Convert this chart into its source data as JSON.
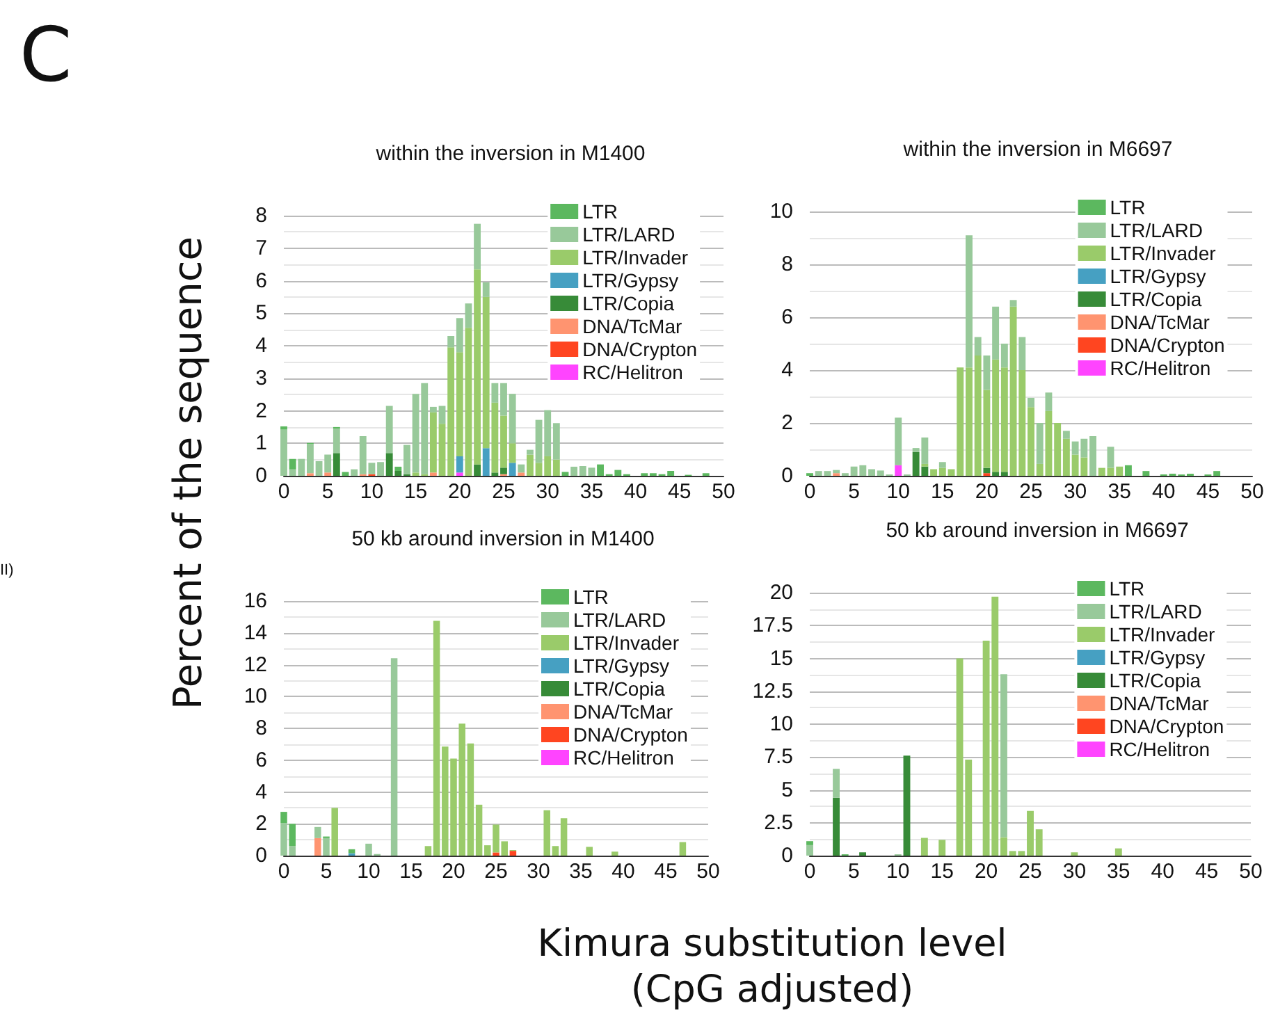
{
  "chart_data": [
    {
      "type": "bar",
      "title": "within the inversion in M1400",
      "xlabel": "Kimura substitution level\n(CpG adjusted)",
      "ylabel": "Percent of the sequence",
      "annotations": [
        "C",
        "II)"
      ],
      "stacked": true,
      "legend": "top right",
      "grid": "y",
      "xlim": [
        0,
        50
      ],
      "xticks": [
        0,
        5,
        10,
        15,
        20,
        25,
        30,
        35,
        40,
        45,
        50
      ],
      "ylim": [
        0,
        8
      ],
      "yticks": [
        0,
        1,
        2,
        3,
        4,
        5,
        6,
        7,
        8
      ],
      "x": [
        0,
        1,
        2,
        3,
        4,
        5,
        6,
        7,
        8,
        9,
        10,
        11,
        12,
        13,
        14,
        15,
        16,
        17,
        18,
        19,
        20,
        21,
        22,
        23,
        24,
        25,
        26,
        27,
        28,
        29,
        30,
        31,
        32,
        33,
        34,
        35,
        36,
        37,
        38,
        39,
        40,
        41,
        42,
        43,
        44,
        45,
        46,
        47,
        48,
        49
      ],
      "series": [
        {
          "name": "RC/Helitron",
          "color": "#ff44ff",
          "values": [
            0,
            0,
            0,
            0,
            0,
            0,
            0,
            0,
            0,
            0,
            0,
            0,
            0,
            0,
            0,
            0,
            0,
            0,
            0,
            0,
            0.1,
            0,
            0,
            0,
            0,
            0,
            0,
            0,
            0,
            0,
            0,
            0,
            0,
            0,
            0,
            0,
            0,
            0,
            0,
            0,
            0,
            0,
            0,
            0,
            0,
            0,
            0,
            0,
            0,
            0
          ]
        },
        {
          "name": "DNA/Crypton",
          "color": "#ff4520",
          "values": [
            0,
            0,
            0,
            0,
            0,
            0,
            0,
            0,
            0,
            0,
            0.05,
            0,
            0,
            0,
            0,
            0,
            0,
            0,
            0,
            0,
            0,
            0,
            0,
            0,
            0,
            0,
            0,
            0,
            0,
            0,
            0,
            0,
            0,
            0,
            0,
            0,
            0,
            0,
            0,
            0,
            0,
            0,
            0,
            0,
            0,
            0,
            0,
            0,
            0,
            0
          ]
        },
        {
          "name": "DNA/TcMar",
          "color": "#ff9470",
          "values": [
            0,
            0,
            0,
            0.08,
            0,
            0.1,
            0,
            0,
            0,
            0.05,
            0,
            0,
            0,
            0,
            0,
            0,
            0,
            0.1,
            0,
            0,
            0,
            0,
            0,
            0,
            0,
            0.05,
            0,
            0.1,
            0,
            0,
            0,
            0,
            0,
            0,
            0,
            0,
            0,
            0,
            0,
            0,
            0,
            0,
            0,
            0,
            0,
            0,
            0,
            0,
            0,
            0
          ]
        },
        {
          "name": "LTR/Copia",
          "color": "#378b38",
          "values": [
            0,
            0,
            0,
            0,
            0,
            0,
            0.7,
            0,
            0,
            0,
            0,
            0,
            0.7,
            0.15,
            0.05,
            0,
            0,
            0,
            0,
            0,
            0,
            0,
            0.35,
            0,
            0.1,
            0.2,
            0,
            0,
            0,
            0,
            0,
            0,
            0,
            0,
            0,
            0,
            0,
            0,
            0,
            0,
            0,
            0,
            0,
            0,
            0,
            0,
            0,
            0,
            0,
            0
          ]
        },
        {
          "name": "LTR/Gypsy",
          "color": "#46a0c2",
          "values": [
            0,
            0,
            0,
            0,
            0,
            0,
            0,
            0,
            0,
            0,
            0,
            0,
            0,
            0,
            0,
            0,
            0,
            0,
            0,
            0,
            0.5,
            0,
            0,
            0.85,
            0,
            0,
            0.4,
            0,
            0,
            0,
            0,
            0,
            0,
            0,
            0,
            0,
            0,
            0,
            0,
            0,
            0,
            0,
            0,
            0,
            0,
            0,
            0,
            0,
            0,
            0
          ]
        },
        {
          "name": "LTR/Invader",
          "color": "#9acb6a",
          "values": [
            0,
            0,
            0,
            0,
            0,
            0,
            0,
            0,
            0,
            0,
            0,
            0,
            0,
            0,
            0,
            0.1,
            0.05,
            1.85,
            1.6,
            3.95,
            3.2,
            4.55,
            6.0,
            4.65,
            2.15,
            1.6,
            0.6,
            0,
            0.65,
            0.4,
            0.6,
            0.5,
            0,
            0,
            0,
            0,
            0,
            0,
            0,
            0,
            0,
            0,
            0,
            0,
            0,
            0,
            0,
            0,
            0,
            0
          ]
        },
        {
          "name": "LTR/LARD",
          "color": "#98c99a",
          "values": [
            1.42,
            0.2,
            0.52,
            0.9,
            0.45,
            0.55,
            0.75,
            0,
            0.2,
            1.17,
            0.35,
            0.42,
            1.45,
            0,
            0.9,
            2.42,
            2.8,
            0.17,
            0.55,
            0.35,
            1.05,
            0.75,
            1.4,
            0.45,
            0.6,
            1.0,
            1.52,
            0.25,
            0.15,
            1.32,
            1.42,
            1.12,
            0,
            0.28,
            0.3,
            0.25,
            0,
            0,
            0,
            0,
            0,
            0,
            0,
            0,
            0,
            0,
            0,
            0,
            0,
            0
          ]
        },
        {
          "name": "LTR",
          "color": "#5cb85f",
          "values": [
            0.1,
            0.32,
            0,
            0.03,
            0,
            0,
            0.05,
            0.12,
            0,
            0,
            0,
            0,
            0,
            0.13,
            0,
            0,
            0,
            0,
            0,
            0,
            0,
            0,
            0,
            0,
            0,
            0,
            0,
            0,
            0,
            0,
            0,
            0,
            0.12,
            0,
            0,
            0,
            0.35,
            0.05,
            0.18,
            0.05,
            0,
            0.08,
            0.08,
            0.05,
            0.15,
            0,
            0.03,
            0,
            0.08,
            0
          ]
        }
      ]
    },
    {
      "type": "bar",
      "title": "within the inversion in M6697",
      "stacked": true,
      "legend": "top right",
      "grid": "y",
      "xlim": [
        0,
        50
      ],
      "xticks": [
        0,
        5,
        10,
        15,
        20,
        25,
        30,
        35,
        40,
        45,
        50
      ],
      "ylim": [
        0,
        10
      ],
      "yticks": [
        0,
        2,
        4,
        6,
        8,
        10
      ],
      "x": [
        0,
        1,
        2,
        3,
        4,
        5,
        6,
        7,
        8,
        9,
        10,
        11,
        12,
        13,
        14,
        15,
        16,
        17,
        18,
        19,
        20,
        21,
        22,
        23,
        24,
        25,
        26,
        27,
        28,
        29,
        30,
        31,
        32,
        33,
        34,
        35,
        36,
        37,
        38,
        39,
        40,
        41,
        42,
        43,
        44,
        45,
        46,
        47,
        48,
        49
      ],
      "series": [
        {
          "name": "RC/Helitron",
          "color": "#ff44ff",
          "values": [
            0,
            0,
            0,
            0,
            0,
            0,
            0,
            0,
            0,
            0,
            0.4,
            0,
            0,
            0,
            0,
            0,
            0,
            0,
            0,
            0,
            0,
            0,
            0,
            0,
            0,
            0,
            0,
            0,
            0,
            0,
            0,
            0,
            0,
            0,
            0,
            0,
            0,
            0,
            0,
            0,
            0,
            0,
            0,
            0,
            0,
            0,
            0,
            0,
            0,
            0
          ]
        },
        {
          "name": "DNA/Crypton",
          "color": "#ff4520",
          "values": [
            0,
            0,
            0,
            0,
            0,
            0,
            0,
            0,
            0,
            0,
            0,
            0,
            0,
            0,
            0,
            0,
            0,
            0,
            0,
            0,
            0.1,
            0,
            0,
            0,
            0,
            0,
            0,
            0,
            0,
            0,
            0,
            0,
            0,
            0,
            0,
            0,
            0,
            0,
            0,
            0,
            0,
            0,
            0,
            0,
            0,
            0,
            0,
            0,
            0,
            0
          ]
        },
        {
          "name": "DNA/TcMar",
          "color": "#ff9470",
          "values": [
            0,
            0,
            0,
            0.1,
            0,
            0,
            0,
            0,
            0,
            0,
            0,
            0,
            0,
            0,
            0,
            0,
            0,
            0,
            0,
            0,
            0,
            0,
            0,
            0,
            0,
            0,
            0,
            0,
            0,
            0,
            0,
            0,
            0,
            0,
            0,
            0,
            0,
            0,
            0,
            0,
            0,
            0,
            0,
            0,
            0,
            0,
            0,
            0,
            0,
            0
          ]
        },
        {
          "name": "LTR/Copia",
          "color": "#378b38",
          "values": [
            0,
            0,
            0,
            0,
            0,
            0,
            0,
            0,
            0,
            0,
            0,
            0,
            0.9,
            0.35,
            0,
            0,
            0,
            0,
            0,
            0,
            0.2,
            0.15,
            0.15,
            0,
            0,
            0,
            0,
            0,
            0,
            0,
            0,
            0,
            0,
            0,
            0,
            0,
            0,
            0,
            0,
            0,
            0,
            0,
            0,
            0,
            0,
            0,
            0,
            0,
            0,
            0
          ]
        },
        {
          "name": "LTR/Gypsy",
          "color": "#46a0c2",
          "values": [
            0,
            0,
            0,
            0,
            0,
            0,
            0,
            0,
            0,
            0,
            0,
            0,
            0,
            0,
            0,
            0,
            0,
            0,
            0,
            0,
            0,
            0,
            0,
            0,
            0,
            0,
            0,
            0,
            0,
            0,
            0,
            0,
            0,
            0,
            0,
            0,
            0,
            0,
            0,
            0,
            0,
            0,
            0,
            0,
            0,
            0,
            0,
            0,
            0,
            0
          ]
        },
        {
          "name": "LTR/Invader",
          "color": "#9acb6a",
          "values": [
            0,
            0,
            0,
            0,
            0,
            0,
            0,
            0,
            0,
            0,
            0,
            0,
            0,
            0.1,
            0.25,
            0.3,
            0.25,
            4.1,
            4.1,
            4.55,
            2.95,
            4.25,
            3.95,
            6.4,
            4.0,
            2.6,
            0.45,
            2.45,
            2.0,
            1.4,
            0.8,
            0.7,
            0,
            0.3,
            0.3,
            0.35,
            0,
            0,
            0,
            0,
            0,
            0,
            0,
            0,
            0,
            0,
            0,
            0,
            0,
            0
          ]
        },
        {
          "name": "LTR/LARD",
          "color": "#98c99a",
          "values": [
            0,
            0.18,
            0.18,
            0.12,
            0.1,
            0.35,
            0.4,
            0.25,
            0.2,
            0.05,
            1.8,
            0.05,
            0.15,
            1.0,
            0,
            0.22,
            0,
            0,
            5.0,
            0.7,
            1.3,
            2.0,
            0.9,
            0.25,
            1.25,
            0.35,
            1.55,
            0.7,
            0,
            0.3,
            0.5,
            0.7,
            1.5,
            0,
            0.8,
            0,
            0,
            0,
            0,
            0,
            0,
            0,
            0,
            0,
            0,
            0,
            0,
            0,
            0,
            0
          ]
        },
        {
          "name": "LTR",
          "color": "#5cb85f",
          "values": [
            0.1,
            0,
            0,
            0,
            0,
            0,
            0,
            0,
            0,
            0,
            0,
            0,
            0,
            0,
            0,
            0,
            0,
            0,
            0,
            0,
            0,
            0,
            0,
            0,
            0,
            0,
            0,
            0,
            0,
            0,
            0,
            0,
            0,
            0,
            0,
            0,
            0.4,
            0,
            0.18,
            0,
            0.05,
            0.08,
            0.05,
            0.08,
            0,
            0.05,
            0.18,
            0,
            0,
            0
          ]
        }
      ]
    },
    {
      "type": "bar",
      "title": "50 kb around inversion in M1400",
      "stacked": true,
      "legend": "top right",
      "grid": "y",
      "xlim": [
        0,
        50
      ],
      "xticks": [
        0,
        5,
        10,
        15,
        20,
        25,
        30,
        35,
        40,
        45,
        50
      ],
      "ylim": [
        0,
        16
      ],
      "yticks": [
        0,
        2,
        4,
        6,
        8,
        10,
        12,
        14,
        16
      ],
      "x": [
        0,
        1,
        2,
        3,
        4,
        5,
        6,
        7,
        8,
        9,
        10,
        11,
        12,
        13,
        14,
        15,
        16,
        17,
        18,
        19,
        20,
        21,
        22,
        23,
        24,
        25,
        26,
        27,
        28,
        29,
        30,
        31,
        32,
        33,
        34,
        35,
        36,
        37,
        38,
        39,
        40,
        41,
        42,
        43,
        44,
        45,
        46,
        47,
        48,
        49
      ],
      "series": [
        {
          "name": "RC/Helitron",
          "color": "#ff44ff",
          "values": [
            0,
            0,
            0,
            0,
            0,
            0,
            0,
            0,
            0,
            0,
            0,
            0,
            0,
            0,
            0,
            0,
            0,
            0,
            0,
            0,
            0,
            0,
            0,
            0,
            0,
            0,
            0,
            0,
            0,
            0,
            0,
            0,
            0,
            0,
            0,
            0,
            0,
            0,
            0,
            0,
            0,
            0,
            0,
            0,
            0,
            0,
            0,
            0,
            0,
            0
          ]
        },
        {
          "name": "DNA/Crypton",
          "color": "#ff4520",
          "values": [
            0,
            0,
            0,
            0,
            0,
            0,
            0,
            0,
            0,
            0,
            0,
            0,
            0,
            0,
            0,
            0,
            0,
            0,
            0,
            0,
            0,
            0,
            0,
            0,
            0,
            0.2,
            0,
            0.3,
            0,
            0,
            0,
            0,
            0,
            0,
            0,
            0,
            0,
            0,
            0,
            0,
            0,
            0,
            0,
            0,
            0,
            0,
            0,
            0,
            0,
            0
          ]
        },
        {
          "name": "DNA/TcMar",
          "color": "#ff9470",
          "values": [
            0,
            0,
            0,
            0,
            1.1,
            0,
            0,
            0,
            0,
            0,
            0,
            0,
            0,
            0,
            0,
            0,
            0,
            0,
            0,
            0,
            0,
            0,
            0,
            0,
            0,
            0,
            0,
            0,
            0,
            0,
            0,
            0,
            0,
            0,
            0,
            0,
            0,
            0,
            0,
            0,
            0,
            0,
            0,
            0,
            0,
            0,
            0,
            0,
            0,
            0
          ]
        },
        {
          "name": "LTR/Copia",
          "color": "#378b38",
          "values": [
            0,
            0,
            0,
            0,
            0,
            0,
            0,
            0,
            0,
            0,
            0,
            0,
            0,
            0,
            0,
            0,
            0,
            0,
            0,
            0,
            0,
            0,
            0,
            0,
            0,
            0,
            0,
            0,
            0,
            0,
            0,
            0,
            0,
            0,
            0,
            0,
            0,
            0,
            0,
            0,
            0,
            0,
            0,
            0,
            0,
            0,
            0,
            0,
            0,
            0
          ]
        },
        {
          "name": "LTR/Gypsy",
          "color": "#46a0c2",
          "values": [
            0,
            0,
            0,
            0,
            0,
            0,
            0,
            0,
            0.15,
            0,
            0,
            0,
            0,
            0,
            0,
            0,
            0,
            0,
            0,
            0,
            0,
            0,
            0,
            0,
            0,
            0,
            0,
            0,
            0,
            0,
            0,
            0,
            0,
            0,
            0,
            0,
            0,
            0,
            0,
            0,
            0,
            0,
            0,
            0,
            0,
            0,
            0,
            0,
            0,
            0
          ]
        },
        {
          "name": "LTR/Invader",
          "color": "#9acb6a",
          "values": [
            0,
            0,
            0,
            0,
            0,
            0,
            3.0,
            0,
            0,
            0,
            0,
            0,
            0,
            0,
            0,
            0,
            0,
            0.6,
            14.75,
            6.85,
            6.1,
            8.3,
            7.05,
            3.2,
            0.65,
            1.75,
            0.9,
            0.05,
            0,
            0,
            0,
            2.85,
            0.6,
            2.35,
            0,
            0,
            0.55,
            0,
            0,
            0.25,
            0,
            0,
            0,
            0,
            0,
            0,
            0,
            0.85,
            0,
            0
          ]
        },
        {
          "name": "LTR/LARD",
          "color": "#98c99a",
          "values": [
            2.05,
            0.6,
            0,
            0,
            0.7,
            1.1,
            0,
            0,
            0,
            0,
            0.75,
            0.1,
            0,
            12.4,
            0,
            0,
            0,
            0,
            0,
            0,
            0,
            0,
            0,
            0,
            0,
            0,
            0,
            0,
            0,
            0,
            0,
            0,
            0,
            0,
            0,
            0,
            0,
            0,
            0,
            0,
            0,
            0,
            0,
            0,
            0,
            0,
            0,
            0,
            0,
            0
          ]
        },
        {
          "name": "LTR",
          "color": "#5cb85f",
          "values": [
            0.7,
            1.4,
            0,
            0,
            0,
            0.1,
            0,
            0,
            0.25,
            0,
            0,
            0,
            0,
            0,
            0,
            0,
            0,
            0,
            0,
            0,
            0,
            0,
            0,
            0,
            0,
            0,
            0,
            0,
            0,
            0,
            0,
            0,
            0,
            0,
            0,
            0,
            0,
            0,
            0,
            0,
            0,
            0,
            0,
            0,
            0,
            0,
            0,
            0,
            0,
            0
          ]
        }
      ]
    },
    {
      "type": "bar",
      "title": "50 kb around inversion in M6697",
      "stacked": true,
      "legend": "top right",
      "grid": "y",
      "xlim": [
        0,
        50
      ],
      "xticks": [
        0,
        5,
        10,
        15,
        20,
        25,
        30,
        35,
        40,
        45,
        50
      ],
      "ylim": [
        0,
        20
      ],
      "yticks": [
        0,
        2.5,
        5,
        7.5,
        10,
        12.5,
        15,
        17.5,
        20
      ],
      "x": [
        0,
        1,
        2,
        3,
        4,
        5,
        6,
        7,
        8,
        9,
        10,
        11,
        12,
        13,
        14,
        15,
        16,
        17,
        18,
        19,
        20,
        21,
        22,
        23,
        24,
        25,
        26,
        27,
        28,
        29,
        30,
        31,
        32,
        33,
        34,
        35,
        36,
        37,
        38,
        39,
        40,
        41,
        42,
        43,
        44,
        45,
        46,
        47,
        48,
        49
      ],
      "series": [
        {
          "name": "RC/Helitron",
          "color": "#ff44ff",
          "values": [
            0,
            0,
            0,
            0,
            0,
            0,
            0,
            0,
            0,
            0,
            0,
            0,
            0,
            0,
            0,
            0,
            0,
            0,
            0,
            0,
            0,
            0,
            0,
            0,
            0,
            0,
            0,
            0,
            0,
            0,
            0,
            0,
            0,
            0,
            0,
            0,
            0,
            0,
            0,
            0,
            0,
            0,
            0,
            0,
            0,
            0,
            0,
            0,
            0,
            0
          ]
        },
        {
          "name": "DNA/Crypton",
          "color": "#ff4520",
          "values": [
            0,
            0,
            0,
            0,
            0,
            0,
            0,
            0,
            0,
            0,
            0,
            0,
            0,
            0,
            0,
            0,
            0,
            0,
            0,
            0,
            0,
            0,
            0,
            0,
            0,
            0,
            0,
            0,
            0,
            0,
            0,
            0,
            0,
            0,
            0,
            0,
            0,
            0,
            0,
            0,
            0,
            0,
            0,
            0,
            0,
            0,
            0,
            0,
            0,
            0
          ]
        },
        {
          "name": "DNA/TcMar",
          "color": "#ff9470",
          "values": [
            0,
            0,
            0,
            0,
            0,
            0,
            0,
            0,
            0,
            0,
            0,
            0,
            0,
            0,
            0,
            0,
            0,
            0,
            0,
            0,
            0,
            0,
            0,
            0,
            0,
            0,
            0,
            0,
            0,
            0,
            0,
            0,
            0,
            0,
            0,
            0,
            0,
            0,
            0,
            0,
            0,
            0,
            0,
            0,
            0,
            0,
            0,
            0,
            0,
            0
          ]
        },
        {
          "name": "LTR/Copia",
          "color": "#378b38",
          "values": [
            0,
            0,
            0,
            4.4,
            0,
            0,
            0.25,
            0,
            0,
            0,
            0,
            7.6,
            0,
            0,
            0,
            0,
            0,
            0,
            0,
            0,
            0,
            0,
            0,
            0,
            0,
            0,
            0,
            0,
            0,
            0,
            0,
            0,
            0,
            0,
            0,
            0,
            0,
            0,
            0,
            0,
            0,
            0,
            0,
            0,
            0,
            0,
            0,
            0,
            0,
            0
          ]
        },
        {
          "name": "LTR/Gypsy",
          "color": "#46a0c2",
          "values": [
            0,
            0,
            0,
            0,
            0,
            0,
            0,
            0,
            0,
            0,
            0,
            0,
            0,
            0,
            0,
            0,
            0,
            0,
            0,
            0,
            0,
            0,
            0,
            0,
            0,
            0,
            0,
            0,
            0,
            0,
            0,
            0,
            0,
            0,
            0,
            0,
            0,
            0,
            0,
            0,
            0,
            0,
            0,
            0,
            0,
            0,
            0,
            0,
            0,
            0
          ]
        },
        {
          "name": "LTR/Invader",
          "color": "#9acb6a",
          "values": [
            0,
            0,
            0,
            0,
            0,
            0,
            0,
            0,
            0,
            0,
            0,
            0,
            0,
            1.35,
            0,
            1.2,
            0,
            15.0,
            7.3,
            0,
            16.35,
            19.7,
            1.4,
            0.35,
            0.35,
            3.4,
            2.0,
            0,
            0,
            0,
            0.25,
            0,
            0,
            0,
            0,
            0.55,
            0,
            0,
            0,
            0,
            0,
            0,
            0,
            0,
            0,
            0,
            0,
            0,
            0,
            0
          ]
        },
        {
          "name": "LTR/LARD",
          "color": "#98c99a",
          "values": [
            0.8,
            0,
            0,
            2.2,
            0,
            0,
            0,
            0,
            0,
            0,
            0.1,
            0,
            0,
            0,
            0,
            0,
            0,
            0,
            0,
            0,
            0,
            0,
            12.4,
            0,
            0,
            0,
            0,
            0,
            0,
            0,
            0,
            0,
            0,
            0,
            0,
            0,
            0,
            0,
            0,
            0,
            0,
            0,
            0,
            0,
            0,
            0,
            0,
            0,
            0,
            0
          ]
        },
        {
          "name": "LTR",
          "color": "#5cb85f",
          "values": [
            0.3,
            0,
            0,
            0,
            0.1,
            0,
            0,
            0,
            0,
            0,
            0,
            0,
            0,
            0,
            0,
            0,
            0,
            0,
            0,
            0,
            0,
            0,
            0,
            0,
            0,
            0,
            0,
            0,
            0,
            0,
            0,
            0,
            0,
            0,
            0,
            0,
            0,
            0,
            0,
            0,
            0,
            0,
            0,
            0,
            0,
            0,
            0,
            0,
            0,
            0
          ]
        }
      ]
    }
  ]
}
